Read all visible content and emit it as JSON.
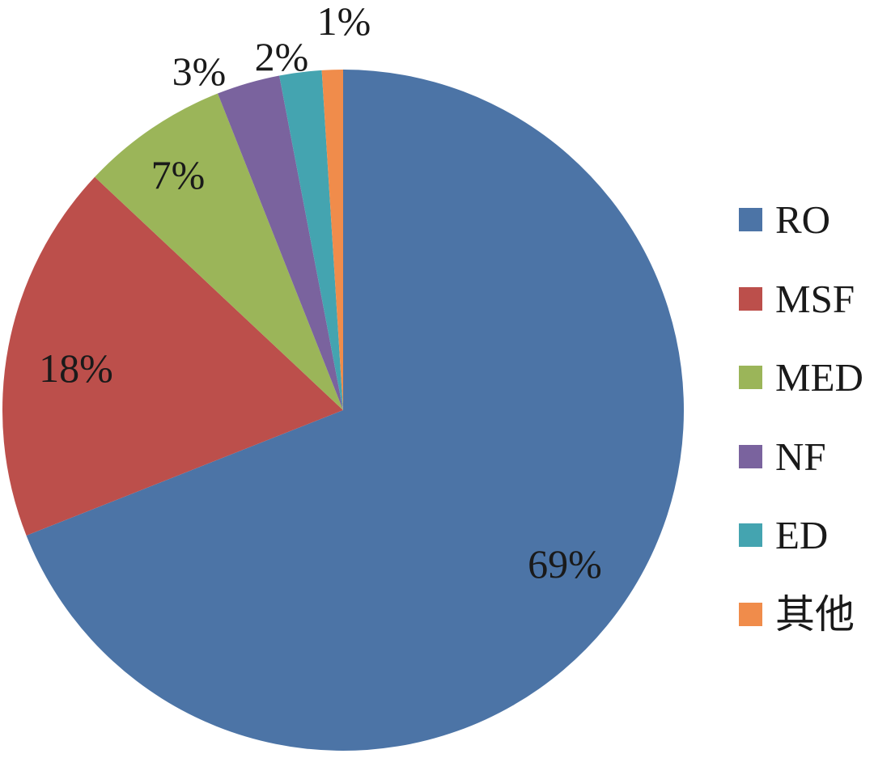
{
  "chart_data": {
    "type": "pie",
    "categories": [
      "RO",
      "MSF",
      "MED",
      "NF",
      "ED",
      "其他"
    ],
    "keys": [
      "ro",
      "msf",
      "med",
      "nf",
      "ed",
      "other"
    ],
    "values": [
      69,
      18,
      7,
      3,
      2,
      1
    ],
    "unit": "%",
    "slice_labels": [
      "69%",
      "18%",
      "7%",
      "3%",
      "2%",
      "1%"
    ],
    "colors": [
      "#4C74A6",
      "#BC4F4B",
      "#9BB559",
      "#7A639E",
      "#44A4B0",
      "#F08C4B"
    ],
    "start_angle_deg": 0,
    "direction": "clockwise",
    "legend_position": "right",
    "legend_entries": [
      "RO",
      "MSF",
      "MED",
      "NF",
      "ED",
      "其他"
    ],
    "text_color": "#1a1a1a",
    "background": "#ffffff",
    "title": ""
  }
}
